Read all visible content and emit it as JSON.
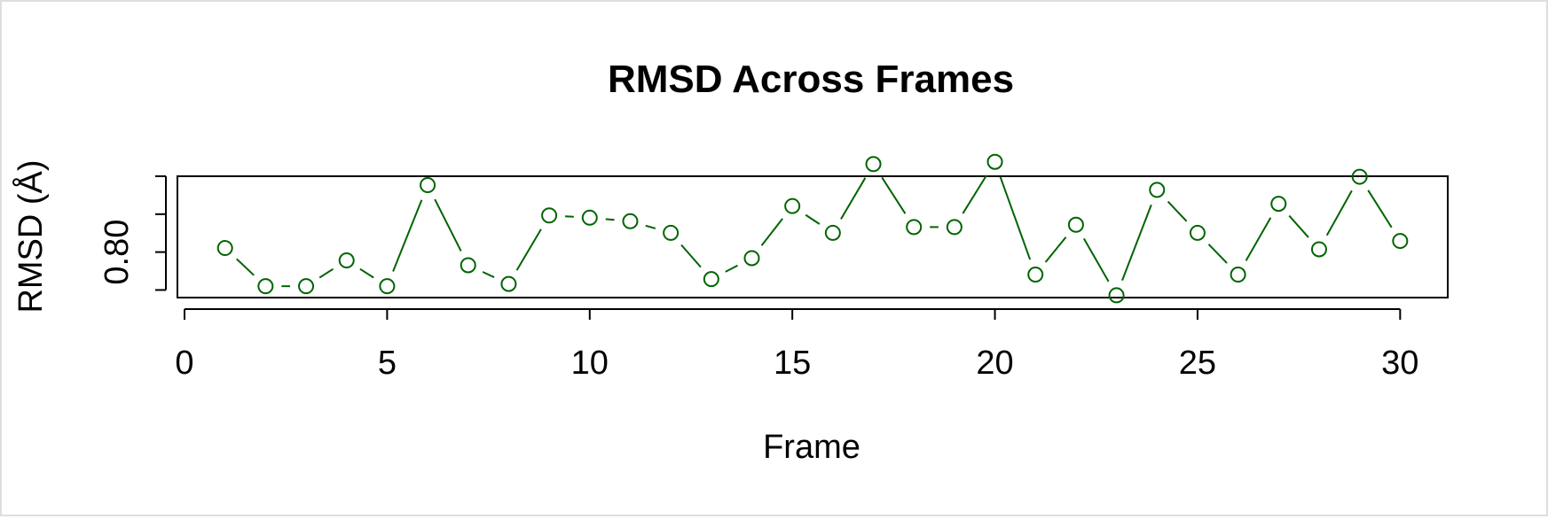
{
  "chart_data": {
    "type": "line",
    "title": "RMSD Across Frames",
    "xlabel": "Frame",
    "ylabel": "RMSD (Å)",
    "xlim": [
      0,
      31
    ],
    "ylim": [
      0.782,
      0.83
    ],
    "x_ticks": [
      0,
      5,
      10,
      15,
      20,
      25,
      30
    ],
    "x_tick_labels": [
      "0",
      "5",
      "10",
      "15",
      "20",
      "25",
      "30"
    ],
    "y_ticks": [
      0.785,
      0.8,
      0.815,
      0.83
    ],
    "y_tick_labels": [
      "",
      "0.80",
      "",
      ""
    ],
    "grid": false,
    "line_style": "b",
    "series": [
      {
        "color": "#006400",
        "x": [
          1,
          2,
          3,
          4,
          5,
          6,
          7,
          8,
          9,
          10,
          11,
          12,
          13,
          14,
          15,
          16,
          17,
          18,
          19,
          20,
          21,
          22,
          23,
          24,
          25,
          26,
          27,
          28,
          29,
          30
        ],
        "y": [
          0.8016,
          0.7865,
          0.7865,
          0.7967,
          0.7865,
          0.8265,
          0.7948,
          0.7874,
          0.8145,
          0.8136,
          0.8122,
          0.8076,
          0.7893,
          0.7976,
          0.8182,
          0.8076,
          0.8348,
          0.8099,
          0.8099,
          0.8357,
          0.7911,
          0.8108,
          0.7829,
          0.8246,
          0.8076,
          0.7911,
          0.8191,
          0.8011,
          0.8298,
          0.8044
        ]
      }
    ]
  }
}
